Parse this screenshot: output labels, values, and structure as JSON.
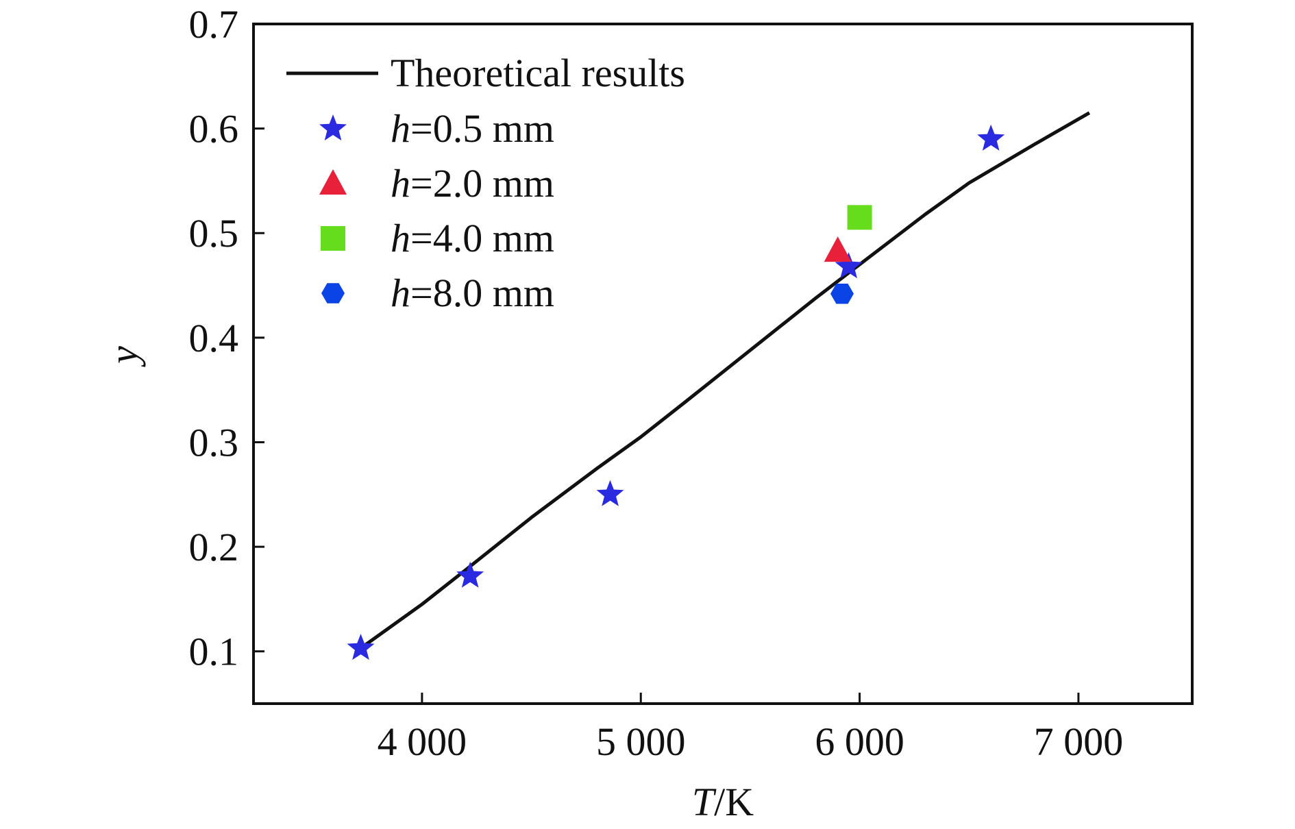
{
  "chart_data": {
    "type": "scatter",
    "title": "",
    "xlabel": {
      "var": "T",
      "unit": "/K"
    },
    "ylabel": "y",
    "xlim": [
      3230,
      7520
    ],
    "ylim": [
      0.05,
      0.7
    ],
    "x_ticks": [
      {
        "value": 4000,
        "label": "4 000"
      },
      {
        "value": 5000,
        "label": "5 000"
      },
      {
        "value": 6000,
        "label": "6 000"
      },
      {
        "value": 7000,
        "label": "7 000"
      }
    ],
    "y_ticks": [
      {
        "value": 0.1,
        "label": "0.1"
      },
      {
        "value": 0.2,
        "label": "0.2"
      },
      {
        "value": 0.3,
        "label": "0.3"
      },
      {
        "value": 0.4,
        "label": "0.4"
      },
      {
        "value": 0.5,
        "label": "0.5"
      },
      {
        "value": 0.6,
        "label": "0.6"
      },
      {
        "value": 0.7,
        "label": "0.7"
      }
    ],
    "legend_position": "top-left",
    "grid": false,
    "series": [
      {
        "name": "Theoretical results",
        "kind": "line",
        "color": "#111111",
        "x": [
          3700,
          4000,
          4200,
          4500,
          4800,
          5000,
          5200,
          5500,
          5800,
          6000,
          6300,
          6500,
          6800,
          7050
        ],
        "y": [
          0.1,
          0.145,
          0.178,
          0.228,
          0.275,
          0.305,
          0.338,
          0.388,
          0.438,
          0.47,
          0.518,
          0.548,
          0.585,
          0.615
        ]
      },
      {
        "name": {
          "var": "h",
          "rest": "=0.5 mm"
        },
        "kind": "points",
        "marker": "star",
        "color": "#2a2ae0",
        "x": [
          3720,
          4220,
          4860,
          5950,
          6600
        ],
        "y": [
          0.103,
          0.172,
          0.25,
          0.468,
          0.59
        ]
      },
      {
        "name": {
          "var": "h",
          "rest": "=2.0 mm"
        },
        "kind": "points",
        "marker": "triangle",
        "color": "#e8203a",
        "x": [
          5900
        ],
        "y": [
          0.483
        ]
      },
      {
        "name": {
          "var": "h",
          "rest": "=4.0 mm"
        },
        "kind": "points",
        "marker": "square",
        "color": "#66dd1c",
        "x": [
          6000
        ],
        "y": [
          0.515
        ]
      },
      {
        "name": {
          "var": "h",
          "rest": "=8.0 mm"
        },
        "kind": "points",
        "marker": "hexagon",
        "color": "#0a44e6",
        "x": [
          5920
        ],
        "y": [
          0.442
        ]
      }
    ]
  }
}
